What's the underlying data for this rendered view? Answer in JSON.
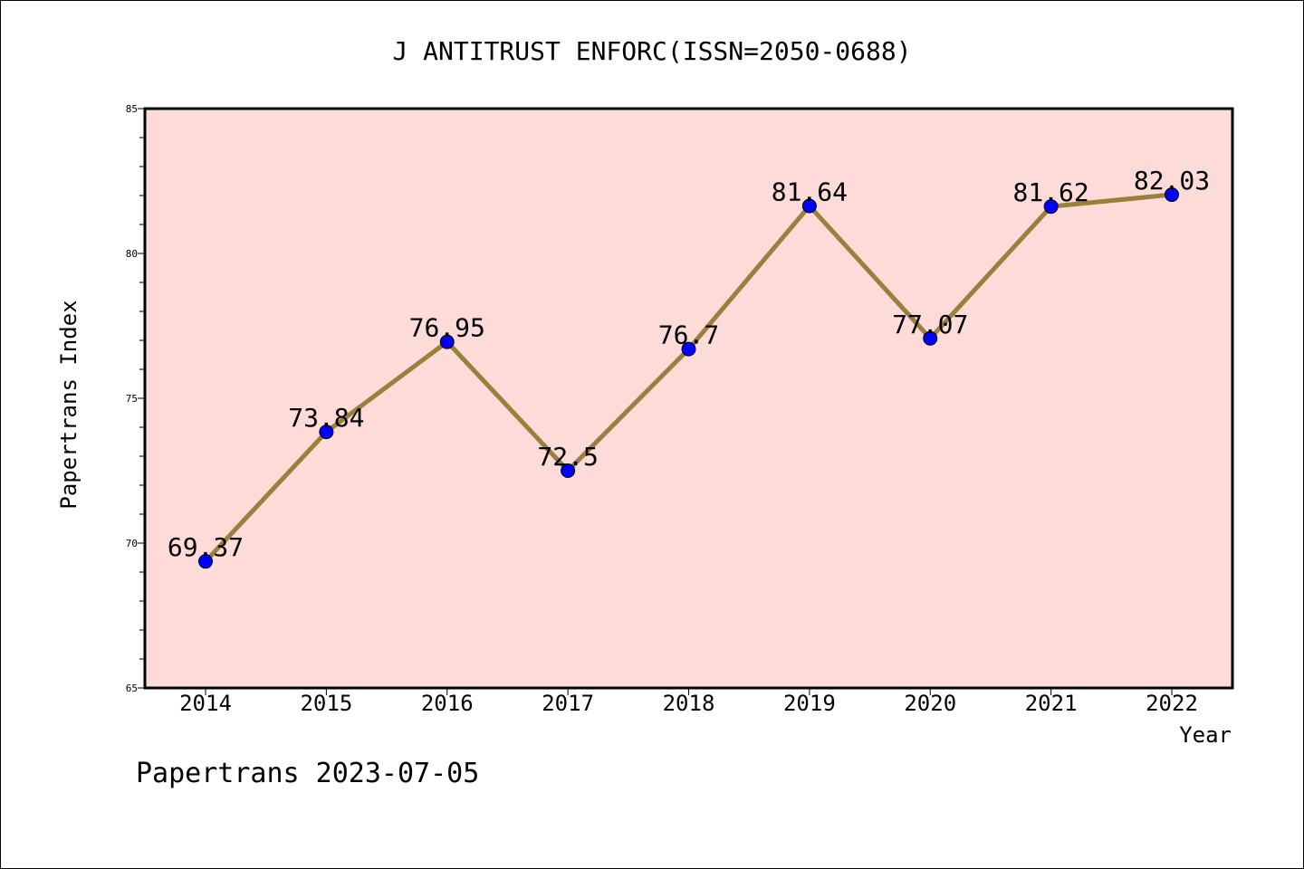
{
  "chart_data": {
    "type": "line",
    "title": "J ANTITRUST ENFORC(ISSN=2050-0688)",
    "xlabel": "Year",
    "ylabel": "Papertrans Index",
    "categories": [
      "2014",
      "2015",
      "2016",
      "2017",
      "2018",
      "2019",
      "2020",
      "2021",
      "2022"
    ],
    "values": [
      69.37,
      73.84,
      76.95,
      72.5,
      76.7,
      81.64,
      77.07,
      81.62,
      82.03
    ],
    "data_labels": [
      "69.37",
      "73.84",
      "76.95",
      "72.5",
      "76.7",
      "81.64",
      "77.07",
      "81.62",
      "82.03"
    ],
    "ylim": [
      65,
      85
    ],
    "yticks": [
      "65",
      "70",
      "75",
      "80",
      "85"
    ],
    "grid": false,
    "footer": "Papertrans 2023-07-05",
    "colors": {
      "plot_background": "#fddbd8",
      "line": "#9b7f3c",
      "marker": "#0000ff"
    }
  }
}
